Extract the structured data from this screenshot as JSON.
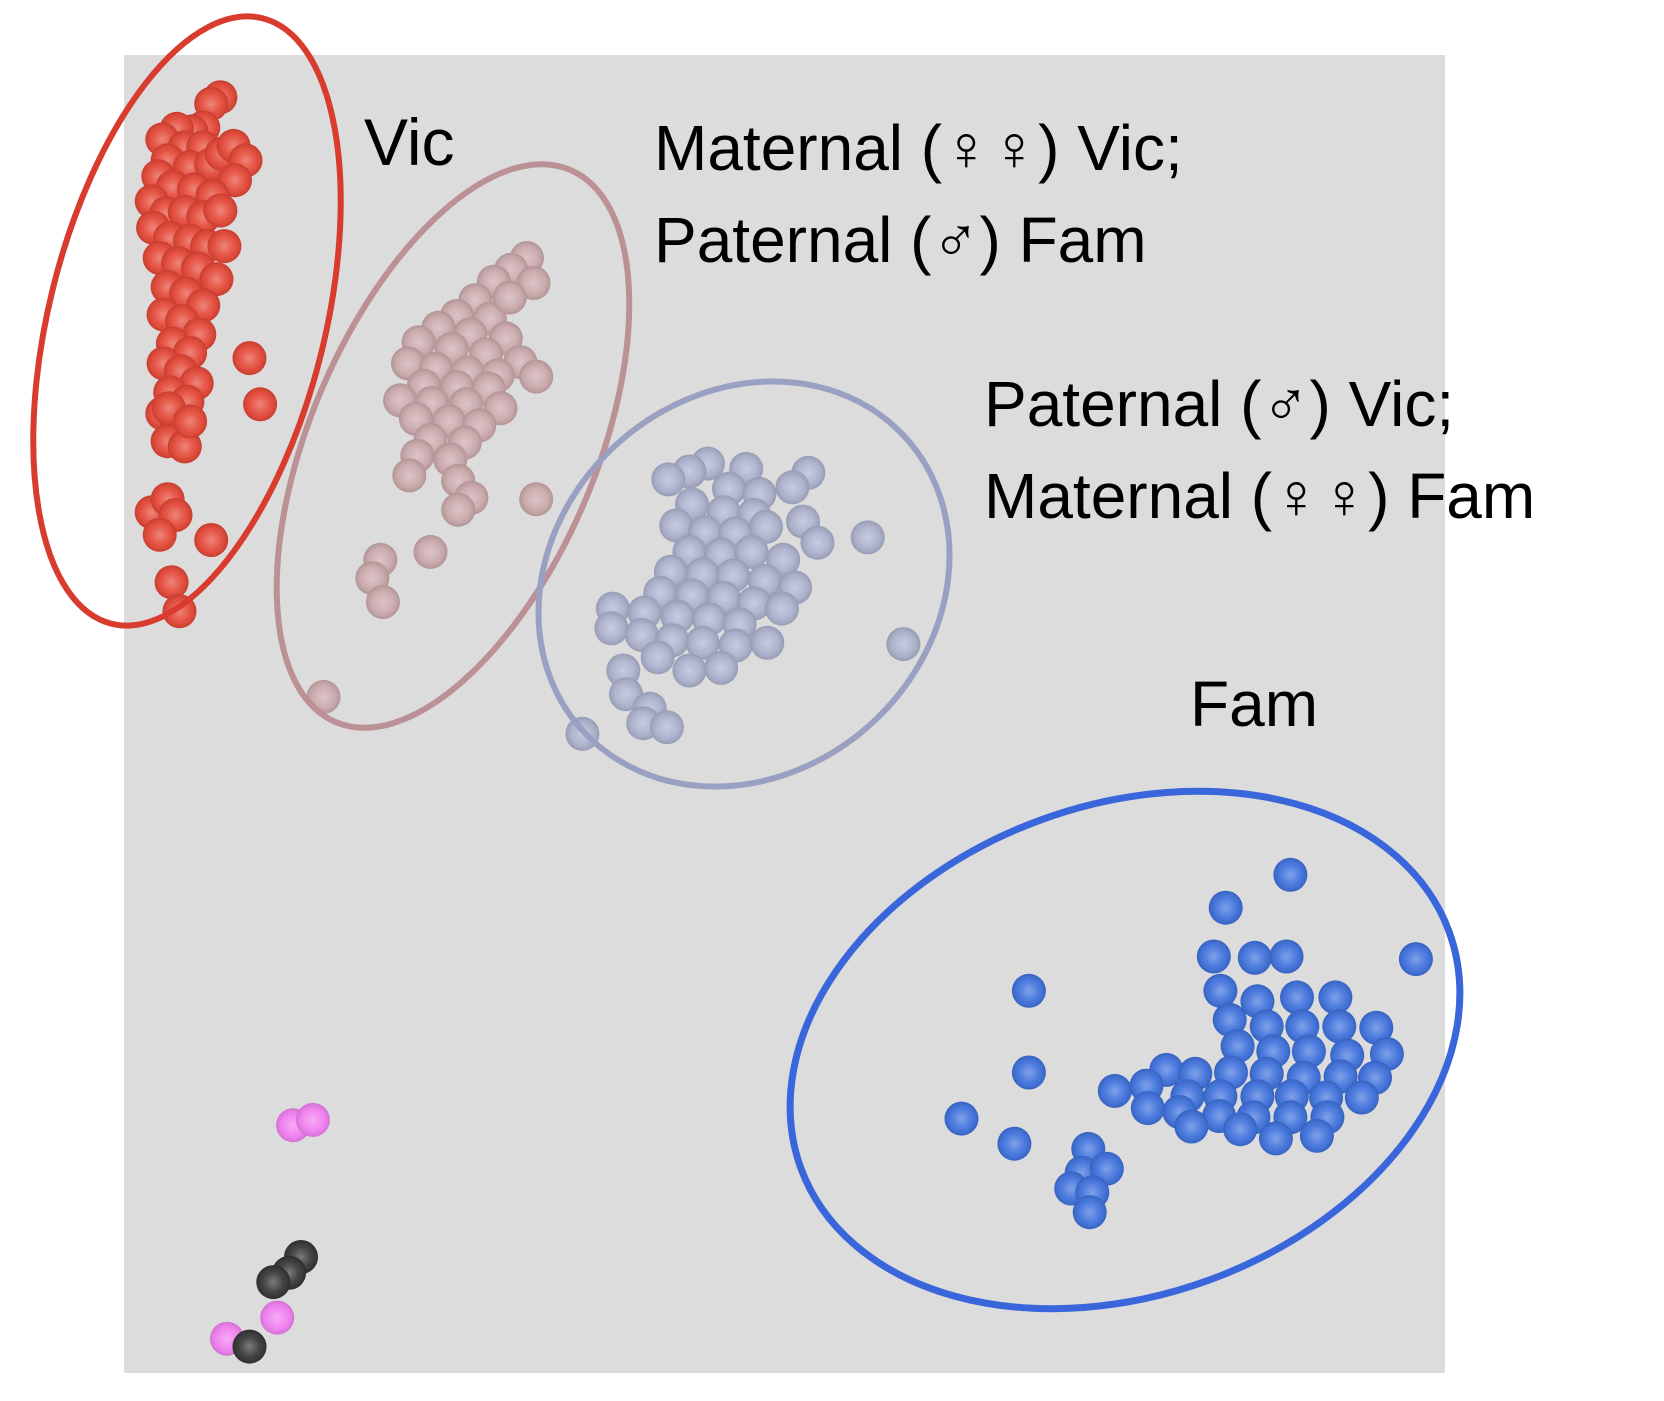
{
  "chart_data": {
    "type": "scatter",
    "title": "",
    "xlabel": "",
    "ylabel": "",
    "xlim": [
      0,
      100
    ],
    "ylim": [
      0,
      100
    ],
    "grid": false,
    "plot_background": "#dcdcdc",
    "series": [
      {
        "name": "Vic",
        "color": "#e34433",
        "ring_color": "#d83c2e",
        "label_lines": [
          "Vic"
        ],
        "points": [
          [
            7.3,
            96.8
          ],
          [
            6.6,
            96.3
          ],
          [
            6.0,
            94.5
          ],
          [
            5.1,
            94.2
          ],
          [
            4.0,
            94.4
          ],
          [
            2.9,
            93.6
          ],
          [
            4.6,
            93.0
          ],
          [
            6.0,
            93.0
          ],
          [
            3.3,
            92.0
          ],
          [
            5.0,
            91.5
          ],
          [
            6.6,
            91.7
          ],
          [
            7.4,
            92.5
          ],
          [
            8.3,
            93.1
          ],
          [
            9.2,
            92.0
          ],
          [
            8.4,
            90.5
          ],
          [
            2.6,
            90.8
          ],
          [
            3.7,
            90.0
          ],
          [
            5.3,
            89.8
          ],
          [
            6.7,
            89.3
          ],
          [
            2.1,
            88.9
          ],
          [
            3.2,
            88.0
          ],
          [
            4.6,
            88.1
          ],
          [
            6.0,
            87.7
          ],
          [
            7.3,
            88.2
          ],
          [
            2.2,
            86.9
          ],
          [
            3.5,
            86.1
          ],
          [
            5.0,
            85.9
          ],
          [
            6.3,
            85.5
          ],
          [
            7.6,
            85.5
          ],
          [
            2.7,
            84.6
          ],
          [
            4.1,
            84.2
          ],
          [
            5.6,
            83.8
          ],
          [
            7.0,
            83.0
          ],
          [
            3.3,
            82.4
          ],
          [
            4.7,
            81.9
          ],
          [
            6.0,
            81.0
          ],
          [
            3.0,
            80.3
          ],
          [
            4.4,
            79.8
          ],
          [
            5.7,
            78.8
          ],
          [
            3.7,
            78.1
          ],
          [
            5.0,
            77.4
          ],
          [
            3.0,
            76.6
          ],
          [
            4.3,
            76.0
          ],
          [
            5.5,
            75.1
          ],
          [
            3.5,
            74.4
          ],
          [
            4.8,
            73.7
          ],
          [
            2.9,
            72.8
          ],
          [
            4.0,
            72.1
          ],
          [
            3.3,
            70.7
          ],
          [
            4.6,
            70.3
          ],
          [
            9.5,
            77.0
          ],
          [
            10.3,
            73.5
          ],
          [
            3.4,
            73.2
          ],
          [
            5.0,
            72.2
          ],
          [
            2.1,
            65.3
          ],
          [
            3.3,
            66.3
          ],
          [
            3.9,
            65.1
          ],
          [
            2.7,
            63.6
          ],
          [
            6.6,
            63.2
          ],
          [
            3.6,
            60.0
          ],
          [
            4.2,
            57.8
          ]
        ]
      },
      {
        "name": "Maternal Vic / Paternal Fam",
        "color": "#c9a7aa",
        "ring_color": "#bb9196",
        "label_lines": [
          "Maternal (♀♀) Vic;",
          "Paternal (♂) Fam"
        ],
        "points": [
          [
            30.5,
            84.6
          ],
          [
            29.3,
            83.7
          ],
          [
            31.0,
            82.7
          ],
          [
            28.0,
            82.8
          ],
          [
            26.6,
            81.4
          ],
          [
            25.2,
            80.2
          ],
          [
            27.7,
            80.0
          ],
          [
            29.2,
            81.6
          ],
          [
            23.8,
            79.3
          ],
          [
            26.2,
            78.8
          ],
          [
            28.9,
            78.5
          ],
          [
            22.3,
            78.2
          ],
          [
            24.8,
            77.7
          ],
          [
            27.4,
            77.3
          ],
          [
            30.0,
            76.7
          ],
          [
            21.5,
            76.6
          ],
          [
            23.6,
            76.2
          ],
          [
            26.0,
            75.9
          ],
          [
            28.3,
            75.7
          ],
          [
            31.2,
            75.6
          ],
          [
            22.7,
            74.9
          ],
          [
            25.2,
            74.8
          ],
          [
            27.6,
            74.7
          ],
          [
            20.9,
            73.8
          ],
          [
            23.3,
            73.6
          ],
          [
            25.9,
            73.5
          ],
          [
            28.5,
            73.2
          ],
          [
            22.1,
            72.4
          ],
          [
            24.6,
            72.2
          ],
          [
            26.9,
            71.9
          ],
          [
            23.2,
            70.8
          ],
          [
            25.8,
            70.6
          ],
          [
            22.2,
            69.6
          ],
          [
            24.7,
            69.3
          ],
          [
            21.6,
            68.1
          ],
          [
            25.3,
            67.7
          ],
          [
            26.3,
            66.4
          ],
          [
            25.3,
            65.5
          ],
          [
            31.2,
            66.3
          ],
          [
            19.4,
            61.7
          ],
          [
            23.2,
            62.3
          ],
          [
            18.8,
            60.3
          ],
          [
            19.6,
            58.5
          ],
          [
            15.1,
            51.3
          ]
        ]
      },
      {
        "name": "Paternal Vic / Maternal Fam",
        "color": "#aab0cb",
        "ring_color": "#9aa0c2",
        "label_lines": [
          "Paternal (♂) Vic;",
          "Maternal (♀♀) Fam"
        ],
        "points": [
          [
            44.2,
            69.0
          ],
          [
            42.8,
            68.4
          ],
          [
            41.2,
            67.8
          ],
          [
            47.1,
            68.6
          ],
          [
            51.8,
            68.3
          ],
          [
            45.8,
            67.1
          ],
          [
            48.1,
            66.7
          ],
          [
            50.6,
            67.2
          ],
          [
            43.0,
            65.9
          ],
          [
            45.4,
            65.3
          ],
          [
            47.7,
            65.1
          ],
          [
            41.8,
            64.3
          ],
          [
            44.0,
            63.8
          ],
          [
            46.3,
            63.7
          ],
          [
            48.6,
            64.2
          ],
          [
            51.4,
            64.6
          ],
          [
            52.5,
            63.0
          ],
          [
            56.3,
            63.4
          ],
          [
            42.8,
            62.3
          ],
          [
            45.2,
            62.1
          ],
          [
            47.5,
            62.3
          ],
          [
            49.9,
            61.7
          ],
          [
            41.4,
            60.8
          ],
          [
            43.8,
            60.6
          ],
          [
            46.1,
            60.5
          ],
          [
            48.5,
            60.1
          ],
          [
            50.8,
            59.6
          ],
          [
            40.6,
            59.2
          ],
          [
            43.0,
            59.0
          ],
          [
            45.4,
            58.8
          ],
          [
            47.7,
            58.4
          ],
          [
            49.8,
            58.0
          ],
          [
            37.0,
            58.0
          ],
          [
            39.4,
            57.7
          ],
          [
            41.9,
            57.4
          ],
          [
            44.3,
            57.2
          ],
          [
            46.6,
            56.8
          ],
          [
            36.9,
            56.5
          ],
          [
            39.2,
            56.0
          ],
          [
            41.5,
            55.6
          ],
          [
            43.8,
            55.4
          ],
          [
            46.3,
            55.2
          ],
          [
            48.7,
            55.4
          ],
          [
            40.4,
            54.3
          ],
          [
            37.8,
            53.3
          ],
          [
            42.8,
            53.3
          ],
          [
            45.2,
            53.5
          ],
          [
            59.0,
            55.3
          ],
          [
            38.0,
            51.5
          ],
          [
            39.8,
            50.4
          ],
          [
            39.3,
            49.3
          ],
          [
            41.1,
            49.0
          ],
          [
            34.7,
            48.5
          ]
        ]
      },
      {
        "name": "Fam",
        "color": "#3c6fdb",
        "ring_color": "#3a66dc",
        "label_lines": [
          "Fam"
        ],
        "points": [
          [
            88.3,
            37.8
          ],
          [
            83.4,
            35.3
          ],
          [
            82.5,
            31.6
          ],
          [
            85.6,
            31.5
          ],
          [
            88.0,
            31.6
          ],
          [
            97.8,
            31.4
          ],
          [
            68.5,
            29.0
          ],
          [
            83.0,
            29.0
          ],
          [
            85.8,
            28.2
          ],
          [
            88.8,
            28.5
          ],
          [
            91.7,
            28.5
          ],
          [
            83.7,
            26.8
          ],
          [
            86.5,
            26.3
          ],
          [
            89.2,
            26.3
          ],
          [
            92.0,
            26.3
          ],
          [
            94.8,
            26.2
          ],
          [
            84.3,
            24.8
          ],
          [
            87.0,
            24.4
          ],
          [
            89.7,
            24.4
          ],
          [
            92.6,
            24.1
          ],
          [
            95.6,
            24.2
          ],
          [
            78.9,
            23.0
          ],
          [
            81.1,
            22.7
          ],
          [
            83.8,
            22.8
          ],
          [
            86.5,
            22.7
          ],
          [
            89.3,
            22.4
          ],
          [
            92.1,
            22.5
          ],
          [
            94.7,
            22.4
          ],
          [
            77.4,
            21.8
          ],
          [
            80.5,
            21.0
          ],
          [
            83.0,
            21.0
          ],
          [
            85.8,
            21.0
          ],
          [
            88.4,
            21.0
          ],
          [
            91.0,
            20.9
          ],
          [
            93.7,
            20.9
          ],
          [
            75.0,
            21.4
          ],
          [
            77.5,
            20.1
          ],
          [
            79.9,
            19.8
          ],
          [
            82.9,
            19.5
          ],
          [
            85.5,
            19.4
          ],
          [
            88.3,
            19.4
          ],
          [
            91.1,
            19.4
          ],
          [
            80.8,
            18.7
          ],
          [
            84.5,
            18.5
          ],
          [
            87.2,
            17.8
          ],
          [
            90.3,
            18.0
          ],
          [
            68.5,
            22.8
          ],
          [
            63.4,
            19.3
          ],
          [
            67.4,
            17.4
          ],
          [
            73.0,
            17.0
          ],
          [
            72.5,
            15.2
          ],
          [
            74.4,
            15.5
          ],
          [
            71.7,
            14.0
          ],
          [
            73.3,
            13.7
          ],
          [
            73.1,
            12.2
          ]
        ]
      },
      {
        "name": "pink",
        "color": "#f07df0",
        "ring_color": "",
        "label_lines": [],
        "points": [
          [
            12.8,
            18.8
          ],
          [
            14.3,
            19.2
          ],
          [
            11.6,
            4.2
          ],
          [
            7.8,
            2.6
          ]
        ]
      },
      {
        "name": "black",
        "color": "#333333",
        "ring_color": "",
        "label_lines": [],
        "points": [
          [
            13.4,
            8.8
          ],
          [
            12.5,
            7.6
          ],
          [
            11.3,
            6.9
          ],
          [
            9.5,
            2.0
          ]
        ]
      }
    ]
  }
}
